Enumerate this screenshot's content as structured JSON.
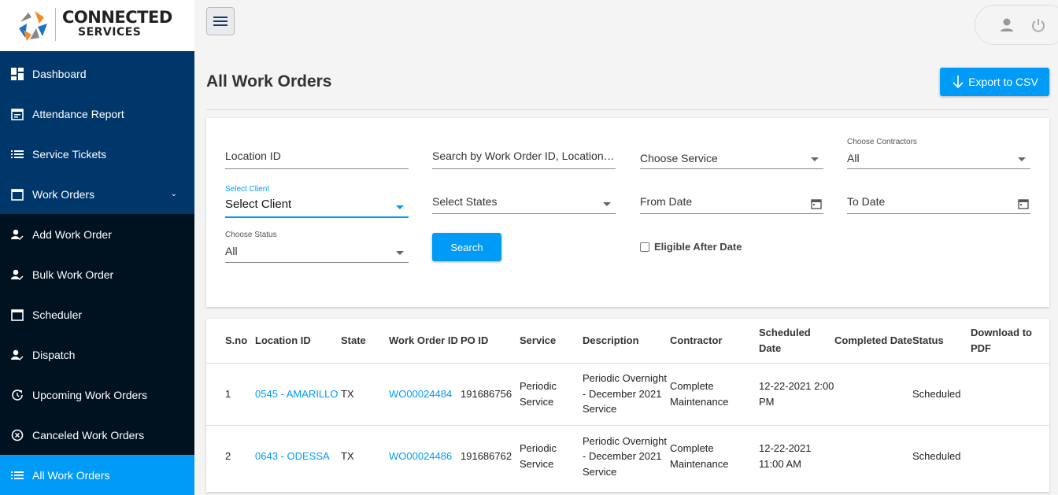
{
  "brand": {
    "line1": "CONNECTED",
    "line2": "SERVICES"
  },
  "sidebar": {
    "items": [
      {
        "label": "Dashboard",
        "icon": "dashboard-icon"
      },
      {
        "label": "Attendance Report",
        "icon": "calendar-note-icon"
      },
      {
        "label": "Service Tickets",
        "icon": "list-icon"
      },
      {
        "label": "Work Orders",
        "icon": "calendar-icon"
      },
      {
        "label": "Add Work Order",
        "icon": "person-check-icon"
      },
      {
        "label": "Bulk Work Order",
        "icon": "person-check-icon"
      },
      {
        "label": "Scheduler",
        "icon": "calendar-icon"
      },
      {
        "label": "Dispatch",
        "icon": "person-check-icon"
      },
      {
        "label": "Upcoming Work Orders",
        "icon": "clock-refresh-icon"
      },
      {
        "label": "Canceled Work Orders",
        "icon": "cancel-circle-icon"
      },
      {
        "label": "All Work Orders",
        "icon": "list-icon"
      }
    ],
    "active": "All Work Orders"
  },
  "header": {
    "title": "All Work Orders",
    "export_label": "Export to CSV"
  },
  "filters": {
    "location_id": "Location ID",
    "search_placeholder": "Search by Work Order ID, Location N...",
    "service": "Choose Service",
    "contractors_label": "Choose Contractors",
    "contractors_value": "All",
    "client_label": "Select Client",
    "client_value": "Select Client",
    "states": "Select States",
    "from_date": "From Date",
    "to_date": "To Date",
    "status_label": "Choose Status",
    "status_value": "All",
    "search_label": "Search",
    "eligible_label": "Eligible After Date"
  },
  "colors": {
    "accent": "#009bf7",
    "sidebar_top": "#00376b",
    "sidebar_dark": "#00111f"
  },
  "table": {
    "headers": [
      "S.no",
      "Location ID",
      "State",
      "Work Order ID",
      "PO ID",
      "Service",
      "Description",
      "Contractor",
      "Scheduled Date",
      "Completed Date",
      "Status",
      "Download to PDF"
    ],
    "rows": [
      [
        "1",
        "0545 - AMARILLO",
        "TX",
        "WO00024484",
        "191686756",
        "Periodic Service",
        "Periodic Overnight - December 2021 Service",
        "Complete Maintenance",
        "12-22-2021 2:00 PM",
        "",
        "Scheduled",
        ""
      ],
      [
        "2",
        "0643 - ODESSA",
        "TX",
        "WO00024486",
        "191686762",
        "Periodic Service",
        "Periodic Overnight - December 2021 Service",
        "Complete Maintenance",
        "12-22-2021 11:00 AM",
        "",
        "Scheduled",
        ""
      ]
    ]
  }
}
